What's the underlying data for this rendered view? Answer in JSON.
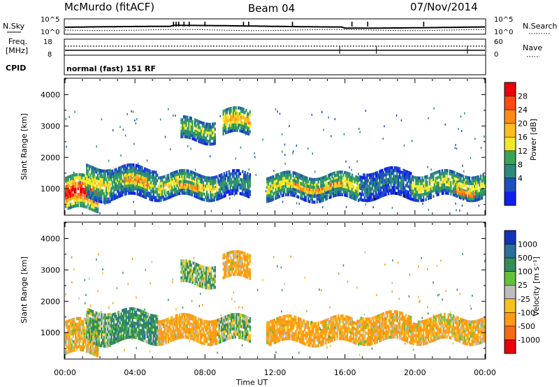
{
  "header": {
    "station": "McMurdo (fitACF)",
    "beam": "Beam 04",
    "date": "07/Nov/2014"
  },
  "noise_panel": {
    "left_label": "N.Sky",
    "right_label": "N.Search",
    "left_ticks": [
      "10^5",
      "10^0"
    ],
    "right_ticks": [
      "10^5",
      "10^0"
    ]
  },
  "freq_panel": {
    "left_label_line1": "Freq.",
    "left_label_line2": "[MHz]",
    "right_label": "Nave",
    "left_ticks": [
      "18",
      "8"
    ],
    "right_ticks": [
      "60",
      "0"
    ]
  },
  "cpid": {
    "label": "CPID",
    "mode": "normal (fast) 151 RF"
  },
  "axes": {
    "ylabel": "Slant Range [km]",
    "xlabel": "Time UT",
    "x_ticks": [
      "00:00",
      "04:00",
      "08:00",
      "12:00",
      "16:00",
      "20:00",
      "00:00"
    ],
    "y_ticks": [
      "4000",
      "3000",
      "2000",
      "1000"
    ]
  },
  "power_scale": {
    "label": "Power [dB]",
    "ticks": [
      "28",
      "24",
      "20",
      "16",
      "12",
      "8",
      "4"
    ],
    "colors": [
      "#e8000b",
      "#ff4a12",
      "#ff8a14",
      "#ffbe1e",
      "#f2e82a",
      "#39a455",
      "#2d8a7a",
      "#1e4fc0",
      "#1020ee"
    ]
  },
  "velocity_scale": {
    "label": "Velocity [m s⁻¹]",
    "ticks": [
      "1000",
      "500",
      "100",
      "25",
      "-25",
      "-100",
      "-500",
      "-1000"
    ],
    "colors": [
      "#1433b8",
      "#2b6f9a",
      "#338c5c",
      "#63c23a",
      "#bdbdbd",
      "#f6c11c",
      "#ff9b12",
      "#f56a12",
      "#e8000b"
    ]
  },
  "chart_data": [
    {
      "type": "heatmap",
      "name_field": "power",
      "xlim_hours": [
        0,
        24
      ],
      "ylim_km": [
        180,
        4500
      ],
      "zlim": [
        0,
        30
      ],
      "blobs": [
        {
          "t0": 0.0,
          "t1": 1.9,
          "r0": 300,
          "r1": 1300,
          "v": 29
        },
        {
          "t0": 1.2,
          "t1": 2.6,
          "r0": 650,
          "r1": 1700,
          "v": 16
        },
        {
          "t0": 2.6,
          "t1": 5.3,
          "r0": 700,
          "r1": 1650,
          "v": 12
        },
        {
          "t0": 3.3,
          "t1": 4.8,
          "r0": 850,
          "r1": 1450,
          "v": 22
        },
        {
          "t0": 5.3,
          "t1": 8.7,
          "r0": 700,
          "r1": 1450,
          "v": 17
        },
        {
          "t0": 6.5,
          "t1": 7.6,
          "r0": 800,
          "r1": 1100,
          "v": 25
        },
        {
          "t0": 8.7,
          "t1": 10.6,
          "r0": 700,
          "r1": 1450,
          "v": 10
        },
        {
          "t0": 6.6,
          "t1": 8.6,
          "r0": 2500,
          "r1": 3200,
          "v": 14
        },
        {
          "t0": 9.0,
          "t1": 10.6,
          "r0": 2700,
          "r1": 3500,
          "v": 19
        },
        {
          "t0": 11.5,
          "t1": 16.8,
          "r0": 650,
          "r1": 1450,
          "v": 16
        },
        {
          "t0": 13.0,
          "t1": 15.8,
          "r0": 850,
          "r1": 1150,
          "v": 24
        },
        {
          "t0": 16.8,
          "t1": 19.8,
          "r0": 700,
          "r1": 1550,
          "v": 8
        },
        {
          "t0": 19.8,
          "t1": 24.0,
          "r0": 700,
          "r1": 1500,
          "v": 15
        },
        {
          "t0": 22.3,
          "t1": 23.4,
          "r0": 750,
          "r1": 1000,
          "v": 27
        }
      ]
    },
    {
      "type": "heatmap",
      "name_field": "velocity",
      "xlim_hours": [
        0,
        24
      ],
      "ylim_km": [
        180,
        4500
      ],
      "zlim": [
        -1000,
        1000
      ],
      "blobs": [
        {
          "t0": 0.0,
          "t1": 1.9,
          "r0": 300,
          "r1": 1300,
          "v": -100
        },
        {
          "t0": 1.2,
          "t1": 2.6,
          "r0": 650,
          "r1": 1700,
          "v": 100
        },
        {
          "t0": 2.6,
          "t1": 5.3,
          "r0": 700,
          "r1": 1650,
          "v": 300
        },
        {
          "t0": 5.3,
          "t1": 8.7,
          "r0": 700,
          "r1": 1450,
          "v": -200
        },
        {
          "t0": 8.7,
          "t1": 10.6,
          "r0": 700,
          "r1": 1450,
          "v": 60
        },
        {
          "t0": 6.6,
          "t1": 8.6,
          "r0": 2500,
          "r1": 3200,
          "v": 100
        },
        {
          "t0": 9.0,
          "t1": 10.6,
          "r0": 2700,
          "r1": 3500,
          "v": -200
        },
        {
          "t0": 11.5,
          "t1": 16.8,
          "r0": 650,
          "r1": 1450,
          "v": -200
        },
        {
          "t0": 16.8,
          "t1": 19.8,
          "r0": 700,
          "r1": 1550,
          "v": -150
        },
        {
          "t0": 19.8,
          "t1": 24.0,
          "r0": 700,
          "r1": 1500,
          "v": -120
        }
      ]
    }
  ]
}
